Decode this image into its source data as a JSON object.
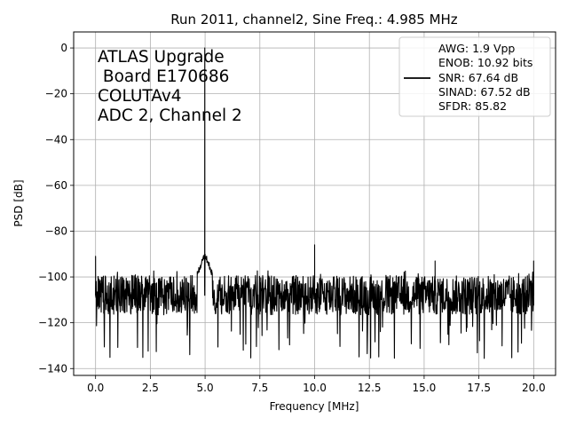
{
  "chart_data": {
    "type": "line",
    "title": "Run 2011, channel2, Sine Freq.: 4.985 MHz",
    "xlabel": "Frequency [MHz]",
    "ylabel": "PSD [dB]",
    "xlim": [
      -1.0,
      21.0
    ],
    "ylim": [
      -143,
      7
    ],
    "x_ticks": [
      0.0,
      2.5,
      5.0,
      7.5,
      10.0,
      12.5,
      15.0,
      17.5,
      20.0
    ],
    "x_tick_labels": [
      "0.0",
      "2.5",
      "5.0",
      "7.5",
      "10.0",
      "12.5",
      "15.0",
      "17.5",
      "20.0"
    ],
    "y_ticks": [
      0,
      -20,
      -40,
      -60,
      -80,
      -100,
      -120,
      -140
    ],
    "y_tick_labels": [
      "0",
      "−20",
      "−40",
      "−60",
      "−80",
      "−100",
      "−120",
      "−140"
    ],
    "grid": true,
    "line_color": "#000000",
    "annotation_lines": [
      "ATLAS Upgrade",
      " Board E170686",
      "COLUTAv4",
      "ADC 2, Channel 2"
    ],
    "legend": {
      "placement": "upper right",
      "lines": [
        "AWG: 1.9 Vpp",
        "ENOB: 10.92 bits",
        "SNR: 67.64 dB",
        "SINAD: 67.52 dB",
        "SFDR: 85.82"
      ]
    },
    "series": [
      {
        "noise_floor_db": -108,
        "noise_band_db": [
          -120,
          -97
        ],
        "min_db": -136,
        "peaks": [
          {
            "x": 4.985,
            "y": 0
          },
          {
            "x": 10.0,
            "y": -86
          },
          {
            "x": 0.0,
            "y": -91
          },
          {
            "x": 15.5,
            "y": -93
          },
          {
            "x": 20.0,
            "y": -93
          }
        ]
      }
    ]
  }
}
